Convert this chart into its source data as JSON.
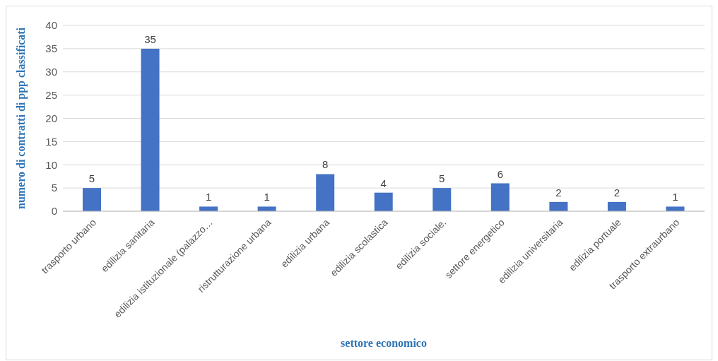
{
  "chart_data": {
    "type": "bar",
    "xlabel": "settore economico",
    "ylabel": "numero di contratti di ppp classificati",
    "categories": [
      "trasporto urbano",
      "edilizia sanitaria",
      "edilizia istituzionale (palazzo…",
      "ristrutturazione urbana",
      "edilizia urbana",
      "edilizia scolastica",
      "edilizia sociale.",
      "settore energetico",
      "edilizia universitaria",
      "edilizia portuale",
      "trasporto extraurbano"
    ],
    "values": [
      5,
      35,
      1,
      1,
      8,
      4,
      5,
      6,
      2,
      2,
      1
    ],
    "color": "#4472c4",
    "ylim": [
      0,
      40
    ],
    "yticks": [
      0,
      5,
      10,
      15,
      20,
      25,
      30,
      35,
      40
    ],
    "grid": "y",
    "data_labels": true,
    "legend": false
  }
}
